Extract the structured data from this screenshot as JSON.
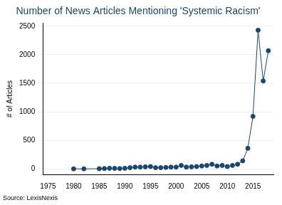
{
  "chart_data": {
    "type": "line",
    "title": "Number of News Articles Mentioning 'Systemic Racism'",
    "y_label": "# of Articles",
    "annotation": "Source: LexisNexis",
    "x": [
      1980,
      1982,
      1985,
      1986,
      1987,
      1988,
      1989,
      1990,
      1991,
      1992,
      1993,
      1994,
      1995,
      1996,
      1997,
      1998,
      1999,
      2000,
      2001,
      2002,
      2003,
      2004,
      2005,
      2006,
      2007,
      2008,
      2009,
      2010,
      2011,
      2012,
      2013,
      2014,
      2015,
      2016,
      2017,
      2018
    ],
    "values": [
      0,
      0,
      2,
      5,
      10,
      8,
      5,
      10,
      20,
      30,
      30,
      35,
      40,
      20,
      20,
      25,
      30,
      30,
      60,
      30,
      35,
      40,
      50,
      60,
      80,
      50,
      60,
      40,
      60,
      80,
      140,
      360,
      920,
      2430,
      1540,
      2070
    ],
    "color": "#1a476f",
    "marker": "circle",
    "line_style": "solid",
    "xlim": [
      1974,
      2019
    ],
    "xticks": [
      1975,
      1980,
      1985,
      1990,
      1995,
      2000,
      2005,
      2010,
      2015
    ],
    "ylim": [
      -100,
      2550
    ],
    "yticks": [
      0,
      500,
      1000,
      1500,
      2000,
      2500
    ],
    "grid": true
  }
}
